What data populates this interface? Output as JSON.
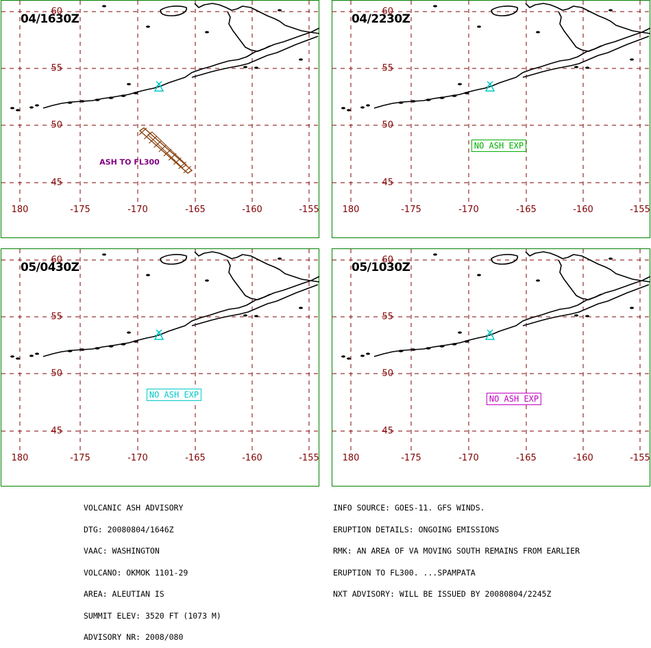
{
  "panels": [
    {
      "time": "04/1630Z",
      "status": "ash",
      "ash_label": "ASH TO FL300"
    },
    {
      "time": "04/2230Z",
      "status": "none",
      "box_text": "NO ASH EXP",
      "box_color": "#00b000"
    },
    {
      "time": "05/0430Z",
      "status": "none",
      "box_text": "NO ASH EXP",
      "box_color": "#00c8c8"
    },
    {
      "time": "05/1030Z",
      "status": "none",
      "box_text": "NO ASH EXP",
      "box_color": "#c000c0"
    }
  ],
  "map": {
    "lat_labels": [
      "60",
      "55",
      "50",
      "45"
    ],
    "lon_labels": [
      "180",
      "-175",
      "-170",
      "-165",
      "-160",
      "-155"
    ],
    "grid_color": "#800000",
    "coast_color": "#000000",
    "volcano_color": "#00c8c8",
    "ash_color": "#8b4513"
  },
  "advisory": {
    "left": [
      "VOLCANIC ASH ADVISORY",
      "DTG: 20080804/1646Z",
      "VAAC: WASHINGTON",
      "VOLCANO: OKMOK 1101-29",
      "AREA: ALEUTIAN IS",
      "SUMMIT ELEV: 3520 FT (1073 M)",
      "ADVISORY NR: 2008/080"
    ],
    "right": [
      "INFO SOURCE: GOES-11. GFS WINDS.",
      "ERUPTION DETAILS: ONGOING EMISSIONS",
      "RMK: AN AREA OF VA MOVING SOUTH REMAINS FROM EARLIER",
      "ERUPTION TO FL300. ...SPAMPATA",
      "NXT ADVISORY: WILL BE ISSUED BY 20080804/2245Z"
    ]
  }
}
